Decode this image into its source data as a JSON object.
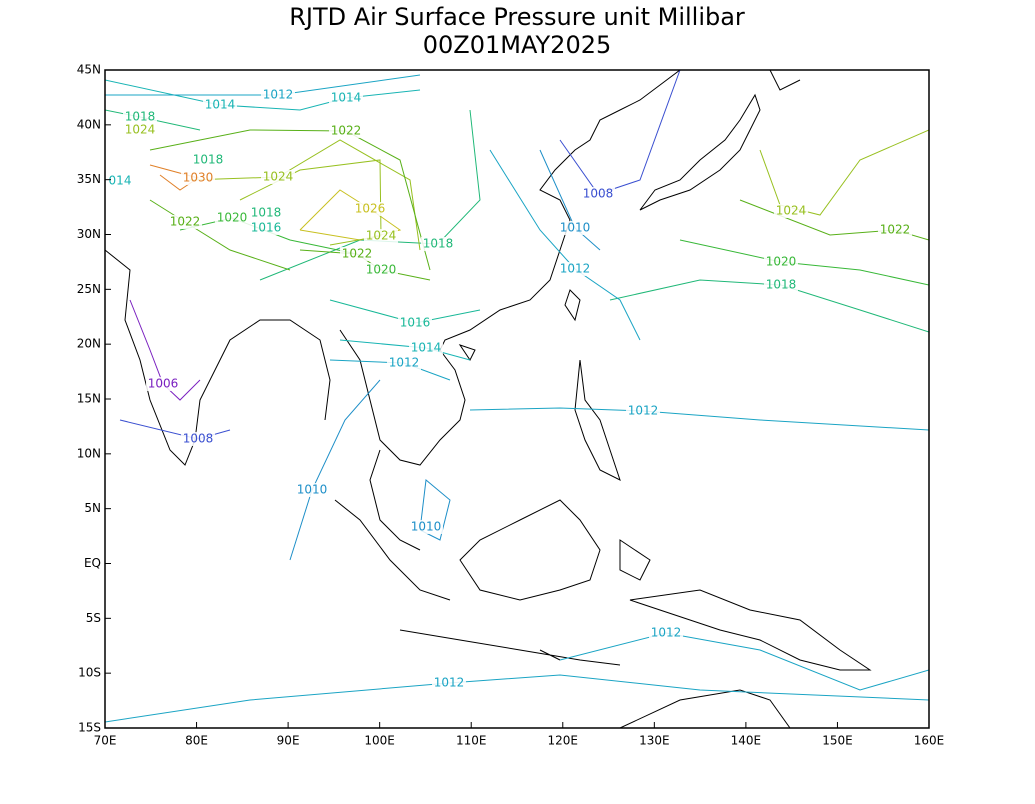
{
  "title": "RJTD Air Surface Pressure unit Millibar",
  "subtitle": "00Z01MAY2025",
  "map": {
    "lonlim": [
      70,
      160
    ],
    "latlim": [
      -15,
      45
    ],
    "lon_ticks": [
      {
        "value": 70,
        "label": "70E"
      },
      {
        "value": 80,
        "label": "80E"
      },
      {
        "value": 90,
        "label": "90E"
      },
      {
        "value": 100,
        "label": "100E"
      },
      {
        "value": 110,
        "label": "110E"
      },
      {
        "value": 120,
        "label": "120E"
      },
      {
        "value": 130,
        "label": "130E"
      },
      {
        "value": 140,
        "label": "140E"
      },
      {
        "value": 150,
        "label": "150E"
      },
      {
        "value": 160,
        "label": "160E"
      }
    ],
    "lat_ticks": [
      {
        "value": 45,
        "label": "45N"
      },
      {
        "value": 40,
        "label": "40N"
      },
      {
        "value": 35,
        "label": "35N"
      },
      {
        "value": 30,
        "label": "30N"
      },
      {
        "value": 25,
        "label": "25N"
      },
      {
        "value": 20,
        "label": "20N"
      },
      {
        "value": 15,
        "label": "15N"
      },
      {
        "value": 10,
        "label": "10N"
      },
      {
        "value": 5,
        "label": "5N"
      },
      {
        "value": 0,
        "label": "EQ"
      },
      {
        "value": -5,
        "label": "5S"
      },
      {
        "value": -10,
        "label": "10S"
      },
      {
        "value": -15,
        "label": "15S"
      }
    ],
    "contour_colors": [
      {
        "level": 1006,
        "color": "#7a20c0"
      },
      {
        "level": 1008,
        "color": "#3a4fd0"
      },
      {
        "level": 1010,
        "color": "#1e8fc8"
      },
      {
        "level": 1012,
        "color": "#1aa4c4"
      },
      {
        "level": 1014,
        "color": "#18b4b4"
      },
      {
        "level": 1016,
        "color": "#18b898"
      },
      {
        "level": 1018,
        "color": "#20b878"
      },
      {
        "level": 1020,
        "color": "#38b838"
      },
      {
        "level": 1022,
        "color": "#58b018"
      },
      {
        "level": 1024,
        "color": "#98c020"
      },
      {
        "level": 1026,
        "color": "#c8c020"
      },
      {
        "level": 1030,
        "color": "#e08028"
      }
    ],
    "contour_labels": [
      1018,
      1024,
      1014,
      1012,
      1014,
      1022,
      1018,
      1030,
      1024,
      {
        "value": 1014,
        "label": "014"
      },
      1026,
      1022,
      1020,
      1018,
      1016,
      1024,
      1018,
      1022,
      1020,
      1008,
      1010,
      1012,
      1024,
      1022,
      1020,
      1018,
      1016,
      1014,
      1012,
      1006,
      1012,
      1008,
      1010,
      1010,
      1012,
      1012
    ]
  }
}
